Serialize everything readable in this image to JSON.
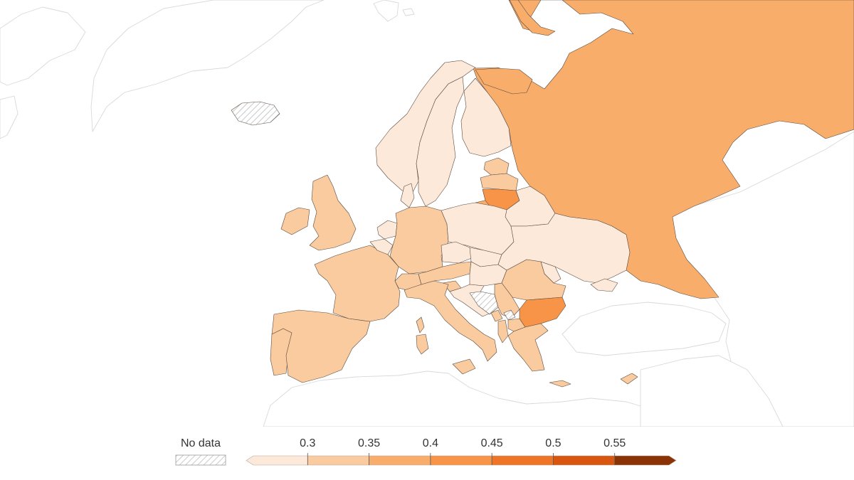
{
  "legend": {
    "no_data_label": "No data",
    "ticks": [
      "0.3",
      "0.35",
      "0.4",
      "0.45",
      "0.5",
      "0.55"
    ],
    "bins": [
      {
        "color": "#fde9d9"
      },
      {
        "color": "#f9cb9f"
      },
      {
        "color": "#f9ad6b"
      },
      {
        "color": "#f89447"
      },
      {
        "color": "#ee7428"
      },
      {
        "color": "#d8560f"
      },
      {
        "color": "#8b3207"
      }
    ]
  },
  "colors": {
    "no_data_hatch": "#bcbcbc",
    "background_border": "#d9d9d9",
    "country_border": "#5a4a3f"
  }
}
